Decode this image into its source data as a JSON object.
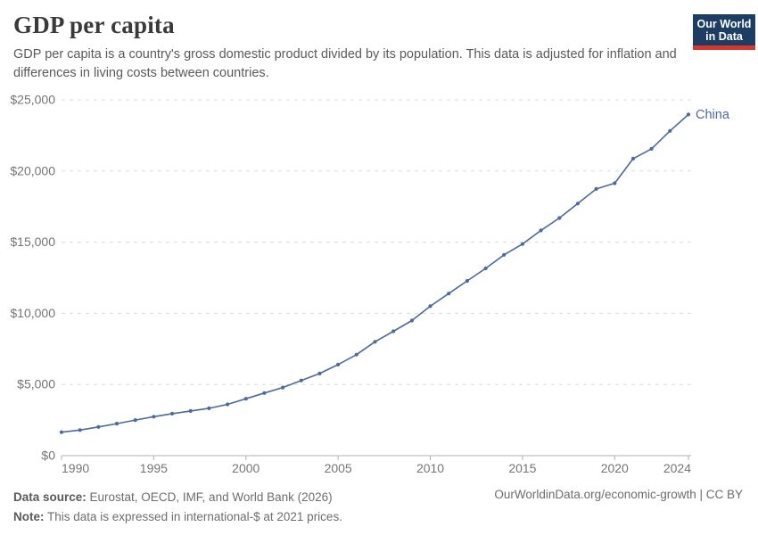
{
  "header": {
    "title": "GDP per capita",
    "subtitle": "GDP per capita is a country's gross domestic product divided by its population. This data is adjusted for inflation and differences in living costs between countries.",
    "logo": {
      "line1": "Our World",
      "line2": "in Data",
      "bg_color": "#1d3d63",
      "stripe_color": "#d7382e"
    }
  },
  "chart_data": {
    "type": "line",
    "title": "GDP per capita",
    "xlabel": "",
    "ylabel": "",
    "xlim": [
      1990,
      2024
    ],
    "ylim": [
      0,
      25000
    ],
    "grid": "horizontal-dashed",
    "legend_position": "end-of-line-label",
    "x_ticks": [
      1990,
      1995,
      2000,
      2005,
      2010,
      2015,
      2020,
      2024
    ],
    "y_ticks": [
      0,
      5000,
      10000,
      15000,
      20000,
      25000
    ],
    "y_tick_labels": [
      "$0",
      "$5,000",
      "$10,000",
      "$15,000",
      "$20,000",
      "$25,000"
    ],
    "series": [
      {
        "name": "China",
        "color": "#4c6a9c",
        "x": [
          1990,
          1991,
          1992,
          1993,
          1994,
          1995,
          1996,
          1997,
          1998,
          1999,
          2000,
          2001,
          2002,
          2003,
          2004,
          2005,
          2006,
          2007,
          2008,
          2009,
          2010,
          2011,
          2012,
          2013,
          2014,
          2015,
          2016,
          2017,
          2018,
          2019,
          2020,
          2021,
          2022,
          2023,
          2024
        ],
        "values": [
          1650,
          1800,
          2020,
          2250,
          2500,
          2740,
          2950,
          3140,
          3330,
          3600,
          4000,
          4400,
          4790,
          5280,
          5770,
          6400,
          7100,
          8000,
          8740,
          9490,
          10500,
          11390,
          12280,
          13160,
          14110,
          14870,
          15830,
          16700,
          17710,
          18740,
          19140,
          20870,
          21560,
          22820,
          23970
        ]
      }
    ]
  },
  "colors": {
    "gridline": "#dcdcdc",
    "axis": "#b0b0b0",
    "tick_text": "#757575"
  },
  "footer": {
    "source_label": "Data source:",
    "source_text": " Eurostat, OECD, IMF, and World Bank (2026)",
    "note_label": "Note:",
    "note_text": " This data is expressed in international-$ at 2021 prices.",
    "credit": "OurWorldinData.org/economic-growth | CC BY"
  }
}
